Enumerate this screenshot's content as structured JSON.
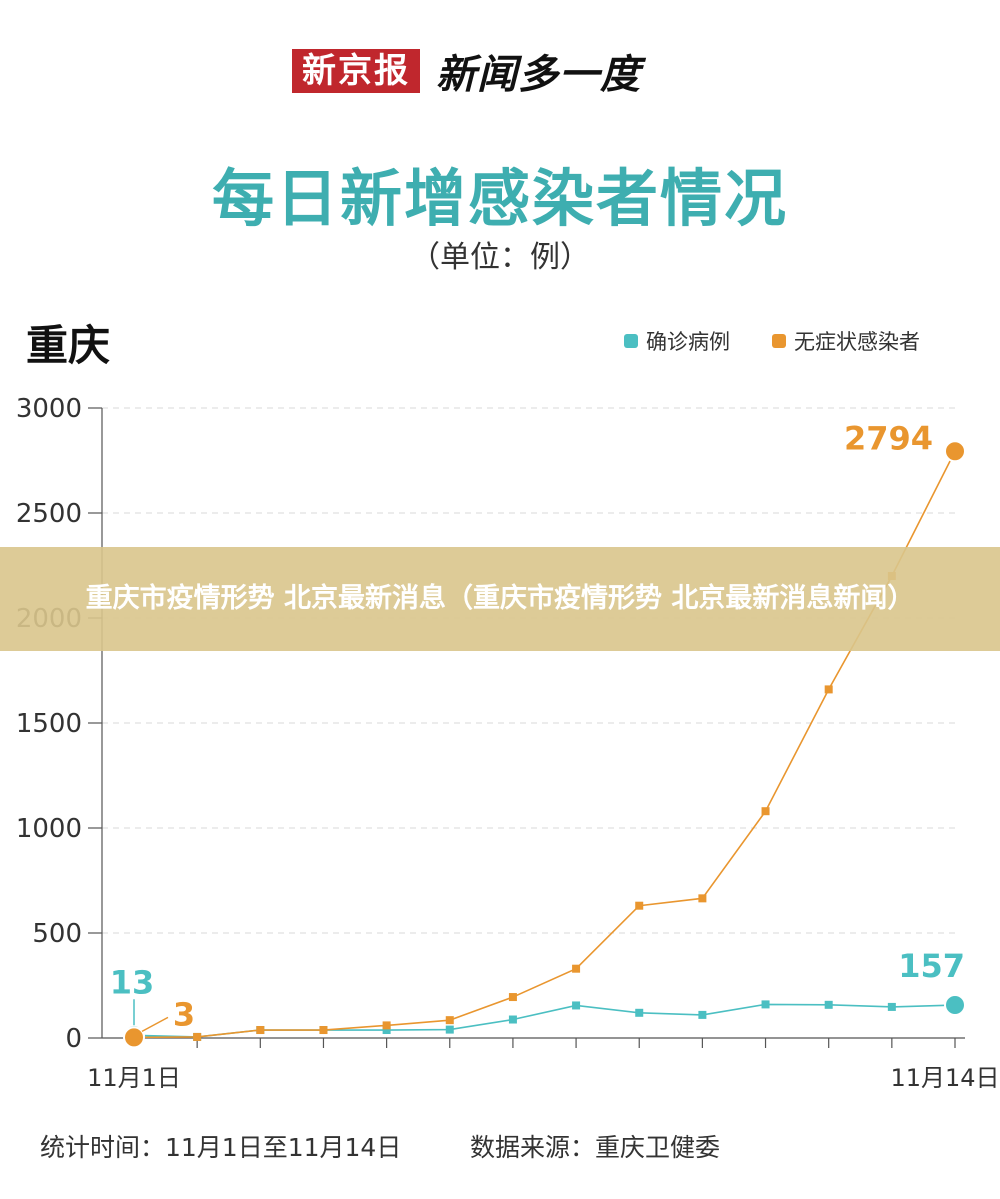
{
  "masthead": {
    "logo": "新京报",
    "column": "新闻多一度"
  },
  "title": "每日新增感染者情况",
  "unit": "（单位：例）",
  "region": "重庆",
  "colors": {
    "confirmed": "#4bbfc2",
    "asymptomatic": "#e9962f",
    "title": "#3eaeb0",
    "overlay": "#d9c58c"
  },
  "chart_data": {
    "type": "line",
    "x_tick_labels": [
      "11月1日",
      "11月14日"
    ],
    "ylim": [
      0,
      3000
    ],
    "y_ticks": [
      0,
      500,
      1000,
      1500,
      2000,
      2500,
      3000
    ],
    "grid": true,
    "legend_position": "top-right",
    "series": [
      {
        "name": "确诊病例",
        "color": "#4bbfc2",
        "values": [
          13,
          5,
          38,
          38,
          38,
          40,
          88,
          155,
          120,
          110,
          160,
          158,
          148,
          157
        ]
      },
      {
        "name": "无症状感染者",
        "color": "#e9962f",
        "values": [
          3,
          5,
          38,
          38,
          60,
          85,
          195,
          330,
          630,
          665,
          1080,
          1660,
          2200,
          2794
        ]
      }
    ],
    "annotations": [
      {
        "series": "确诊病例",
        "index": 0,
        "text": "13"
      },
      {
        "series": "无症状感染者",
        "index": 0,
        "text": "3"
      },
      {
        "series": "无症状感染者",
        "index": 13,
        "text": "2794"
      },
      {
        "series": "确诊病例",
        "index": 13,
        "text": "157"
      }
    ]
  },
  "footer": {
    "period": "统计时间：11月1日至11月14日",
    "source": "数据来源：重庆卫健委"
  },
  "overlay": {
    "text": "重庆市疫情形势 北京最新消息（重庆市疫情形势 北京最新消息新闻）"
  }
}
